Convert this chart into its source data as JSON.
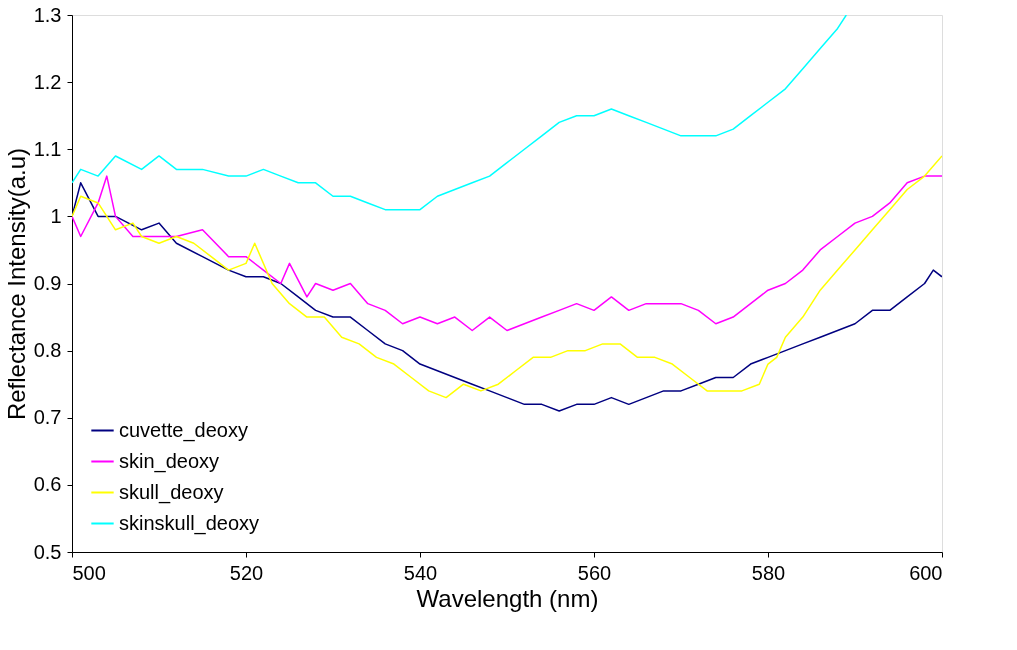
{
  "chart_data": {
    "type": "line",
    "xlabel": "Wavelength (nm)",
    "ylabel": "Reflectance Intensity(a.u)",
    "xlim": [
      500,
      600
    ],
    "xticks": [
      500,
      520,
      540,
      560,
      580,
      600
    ],
    "ylim": [
      0.5,
      1.3
    ],
    "yticks": [
      0.5,
      0.6,
      0.7,
      0.8,
      0.9,
      1,
      1.1,
      1.2,
      1.3
    ],
    "grid": false,
    "legend": "bottom left",
    "marker": "none",
    "line_style": "solid",
    "series": [
      {
        "name": "cuvette_deoxy",
        "color": "#000080",
        "x": [
          500,
          501,
          503,
          505,
          508,
          510,
          512,
          515,
          518,
          520,
          522,
          524,
          526,
          528,
          530,
          532,
          534,
          536,
          538,
          540,
          542,
          544,
          546,
          548,
          550,
          552,
          554,
          556,
          558,
          560,
          562,
          564,
          566,
          568,
          570,
          572,
          574,
          576,
          578,
          580,
          582,
          584,
          586,
          588,
          590,
          592,
          594,
          596,
          598,
          599,
          600
        ],
        "values": [
          1.0,
          1.05,
          1.0,
          1.0,
          0.98,
          0.99,
          0.96,
          0.94,
          0.92,
          0.91,
          0.91,
          0.9,
          0.88,
          0.86,
          0.85,
          0.85,
          0.83,
          0.81,
          0.8,
          0.78,
          0.77,
          0.76,
          0.75,
          0.74,
          0.73,
          0.72,
          0.72,
          0.71,
          0.72,
          0.72,
          0.73,
          0.72,
          0.73,
          0.74,
          0.74,
          0.75,
          0.76,
          0.76,
          0.78,
          0.79,
          0.8,
          0.81,
          0.82,
          0.83,
          0.84,
          0.86,
          0.86,
          0.88,
          0.9,
          0.92,
          0.91
        ]
      },
      {
        "name": "skin_deoxy",
        "color": "#ff00ff",
        "x": [
          500,
          501,
          503,
          504,
          505,
          507,
          510,
          512,
          515,
          518,
          520,
          522,
          524,
          525,
          527,
          528,
          530,
          532,
          534,
          536,
          538,
          540,
          542,
          544,
          546,
          548,
          550,
          552,
          554,
          556,
          558,
          560,
          562,
          564,
          566,
          568,
          570,
          572,
          574,
          576,
          578,
          580,
          582,
          584,
          586,
          588,
          590,
          592,
          594,
          596,
          598,
          600
        ],
        "values": [
          1.0,
          0.97,
          1.02,
          1.06,
          1.0,
          0.97,
          0.97,
          0.97,
          0.98,
          0.94,
          0.94,
          0.92,
          0.9,
          0.93,
          0.88,
          0.9,
          0.89,
          0.9,
          0.87,
          0.86,
          0.84,
          0.85,
          0.84,
          0.85,
          0.83,
          0.85,
          0.83,
          0.84,
          0.85,
          0.86,
          0.87,
          0.86,
          0.88,
          0.86,
          0.87,
          0.87,
          0.87,
          0.86,
          0.84,
          0.85,
          0.87,
          0.89,
          0.9,
          0.92,
          0.95,
          0.97,
          0.99,
          1.0,
          1.02,
          1.05,
          1.06,
          1.06
        ]
      },
      {
        "name": "skull_deoxy",
        "color": "#ffff00",
        "x": [
          500,
          501,
          503,
          505,
          507,
          508,
          510,
          512,
          514,
          516,
          518,
          520,
          521,
          523,
          525,
          527,
          529,
          531,
          533,
          535,
          537,
          539,
          541,
          543,
          545,
          547,
          549,
          551,
          553,
          555,
          557,
          559,
          561,
          563,
          565,
          567,
          569,
          571,
          573,
          575,
          577,
          579,
          580,
          581,
          582,
          584,
          586,
          588,
          590,
          592,
          594,
          596,
          598,
          600
        ],
        "values": [
          1.0,
          1.03,
          1.02,
          0.98,
          0.99,
          0.97,
          0.96,
          0.97,
          0.96,
          0.94,
          0.92,
          0.93,
          0.96,
          0.9,
          0.87,
          0.85,
          0.85,
          0.82,
          0.81,
          0.79,
          0.78,
          0.76,
          0.74,
          0.73,
          0.75,
          0.74,
          0.75,
          0.77,
          0.79,
          0.79,
          0.8,
          0.8,
          0.81,
          0.81,
          0.79,
          0.79,
          0.78,
          0.76,
          0.74,
          0.74,
          0.74,
          0.75,
          0.78,
          0.79,
          0.82,
          0.85,
          0.89,
          0.92,
          0.95,
          0.98,
          1.01,
          1.04,
          1.06,
          1.09
        ]
      },
      {
        "name": "skinskull_deoxy",
        "color": "#00ffff",
        "x": [
          500,
          501,
          503,
          505,
          508,
          510,
          512,
          515,
          518,
          520,
          522,
          524,
          526,
          528,
          530,
          532,
          534,
          536,
          538,
          540,
          542,
          544,
          546,
          548,
          550,
          552,
          554,
          556,
          558,
          560,
          562,
          564,
          566,
          568,
          570,
          572,
          574,
          576,
          578,
          580,
          582,
          584,
          586,
          588,
          589
        ],
        "values": [
          1.05,
          1.07,
          1.06,
          1.09,
          1.07,
          1.09,
          1.07,
          1.07,
          1.06,
          1.06,
          1.07,
          1.06,
          1.05,
          1.05,
          1.03,
          1.03,
          1.02,
          1.01,
          1.01,
          1.01,
          1.03,
          1.04,
          1.05,
          1.06,
          1.08,
          1.1,
          1.12,
          1.14,
          1.15,
          1.15,
          1.16,
          1.15,
          1.14,
          1.13,
          1.12,
          1.12,
          1.12,
          1.13,
          1.15,
          1.17,
          1.19,
          1.22,
          1.25,
          1.28,
          1.3
        ]
      }
    ]
  }
}
